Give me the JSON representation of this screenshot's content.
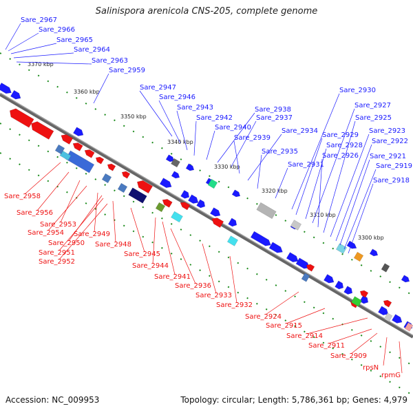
{
  "title": "Salinispora arenicola CNS-205, complete genome",
  "footer": {
    "accession_text": "Accession: NC_009953",
    "summary_text": "Topology: circular; Length: 5,786,361 bp; Genes: 4,979"
  },
  "colors": {
    "plus_strand": "#1a1aff",
    "minus_strand": "#ee1111",
    "backbone": "#888888",
    "tick_dots": "#1a8a1a"
  },
  "scale_labels": [
    "3370 kbp",
    "3360 kbp",
    "3350 kbp",
    "3340 kbp",
    "3330 kbp",
    "3320 kbp",
    "3310 kbp",
    "3300 kbp"
  ],
  "top_labels": [
    "Sare_2967",
    "Sare_2966",
    "Sare_2965",
    "Sare_2964",
    "Sare_2963",
    "Sare_2959",
    "Sare_2947",
    "Sare_2946",
    "Sare_2943",
    "Sare_2942",
    "Sare_2940",
    "Sare_2938",
    "Sare_2937",
    "Sare_2939",
    "Sare_2934",
    "Sare_2935",
    "Sare_2931",
    "Sare_2930",
    "Sare_2929",
    "Sare_2928",
    "Sare_2927",
    "Sare_2926",
    "Sare_2925",
    "Sare_2923",
    "Sare_2922",
    "Sare_2921",
    "Sare_2919",
    "Sare_2918"
  ],
  "bottom_labels": [
    "Sare_2958",
    "Sare_2956",
    "Sare_2953",
    "Sare_2954",
    "Sare_2949",
    "Sare_2950",
    "Sare_2951",
    "Sare_2948",
    "Sare_2952",
    "Sare_2945",
    "Sare_2944",
    "Sare_2941",
    "Sare_2936",
    "Sare_2933",
    "Sare_2932",
    "Sare_2924",
    "Sare_2915",
    "Sare_2914",
    "Sare_2911",
    "Sare_2909",
    "rpsN",
    "rpmG"
  ]
}
